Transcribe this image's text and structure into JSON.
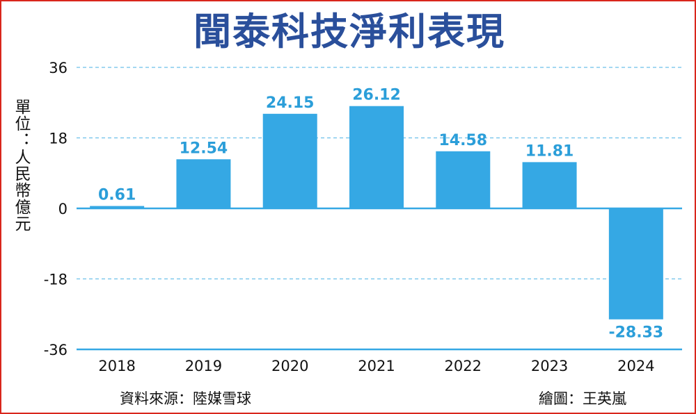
{
  "title": "聞泰科技淨利表現",
  "unit_label": "單位：人民幣億元",
  "source": "資料來源：陸媒雪球",
  "credit": "繪圖：王英嵐",
  "colors": {
    "title": "#2a4f9b",
    "bar": "#35a8e4",
    "label": "#2b9ed9",
    "axis": "#35a8e4",
    "grid": "#6cc0ea",
    "border": "#d9261c"
  },
  "chart_data": {
    "type": "bar",
    "title": "聞泰科技淨利表現",
    "ylabel": "單位：人民幣億元",
    "xlabel": "",
    "categories": [
      "2018",
      "2019",
      "2020",
      "2021",
      "2022",
      "2023",
      "2024"
    ],
    "values": [
      0.61,
      12.54,
      24.15,
      26.12,
      14.58,
      11.81,
      -28.33
    ],
    "value_labels": [
      "0.61",
      "12.54",
      "24.15",
      "26.12",
      "14.58",
      "11.81",
      "-28.33"
    ],
    "yticks": [
      36,
      18,
      0,
      -18,
      -36
    ],
    "ylim": [
      -36,
      36
    ],
    "grid": true
  }
}
